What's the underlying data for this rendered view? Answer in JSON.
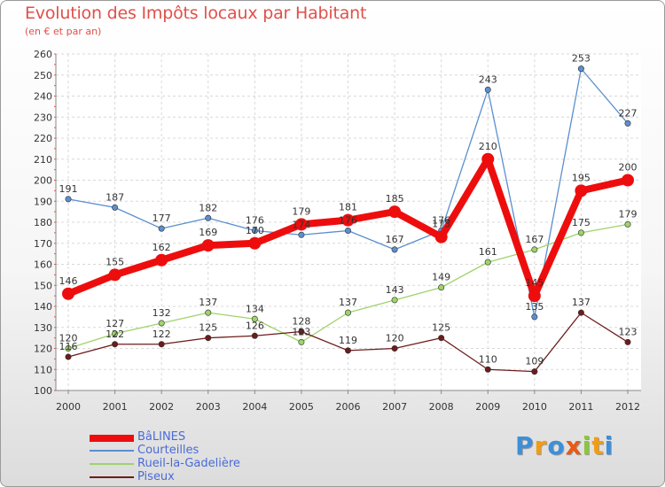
{
  "chart_data": {
    "type": "line",
    "title": "Evolution des Impôts locaux par Habitant",
    "subtitle": "(en € et par an)",
    "x": [
      "2000",
      "2001",
      "2002",
      "2003",
      "2004",
      "2005",
      "2006",
      "2007",
      "2008",
      "2009",
      "2010",
      "2011",
      "2012"
    ],
    "ylim": [
      100,
      260
    ],
    "yticks": [
      100,
      110,
      120,
      130,
      140,
      150,
      160,
      170,
      180,
      190,
      200,
      210,
      220,
      230,
      240,
      250,
      260
    ],
    "grid": true,
    "legend_position": "bottom-left",
    "series": [
      {
        "name": "Courteilles",
        "color": "#5b8fcf",
        "emphasis": false,
        "values": [
          191,
          187,
          177,
          182,
          176,
          174,
          176,
          167,
          176,
          243,
          135,
          253,
          227
        ],
        "labels": [
          "191",
          "187",
          "177",
          "182",
          "176",
          "174",
          "176",
          "167",
          "176",
          "243",
          "135",
          "253",
          "227"
        ]
      },
      {
        "name": "Rueil-la-Gadelière",
        "color": "#9ed36a",
        "emphasis": false,
        "values": [
          120,
          127,
          132,
          137,
          134,
          123,
          137,
          143,
          149,
          161,
          167,
          175,
          179
        ],
        "labels": [
          "120",
          "127",
          "132",
          "137",
          "134",
          "123",
          "137",
          "143",
          "149",
          "161",
          "167",
          "175",
          "179"
        ]
      },
      {
        "name": "Piseux",
        "color": "#6e1b1b",
        "emphasis": false,
        "values": [
          116,
          122,
          122,
          125,
          126,
          128,
          119,
          120,
          125,
          110,
          109,
          137,
          123
        ],
        "labels": [
          "116",
          "122",
          "122",
          "125",
          "126",
          "128",
          "119",
          "120",
          "125",
          "110",
          "109",
          "137",
          "123"
        ]
      },
      {
        "name": "BâLINES",
        "color": "#ee0d0d",
        "emphasis": true,
        "values": [
          146,
          155,
          162,
          169,
          170,
          179,
          181,
          185,
          173,
          210,
          145,
          195,
          200
        ],
        "labels": [
          "146",
          "155",
          "162",
          "169",
          "170",
          "179",
          "181",
          "185",
          "173",
          "210",
          "145",
          "195",
          "200"
        ]
      }
    ],
    "legend": [
      "BâLINES",
      "Courteilles",
      "Rueil-la-Gadelière",
      "Piseux"
    ]
  },
  "legend_colors": [
    "#ee0d0d",
    "#5b8fcf",
    "#9ed36a",
    "#6e1b1b"
  ],
  "logo": {
    "letters": [
      "P",
      "r",
      "o",
      "x",
      "i",
      "t",
      "i"
    ],
    "colors": [
      "#3d8fd8",
      "#f39c12",
      "#3d8fd8",
      "#e85a14",
      "#8cc63f",
      "#f39c12",
      "#3d8fd8"
    ]
  }
}
